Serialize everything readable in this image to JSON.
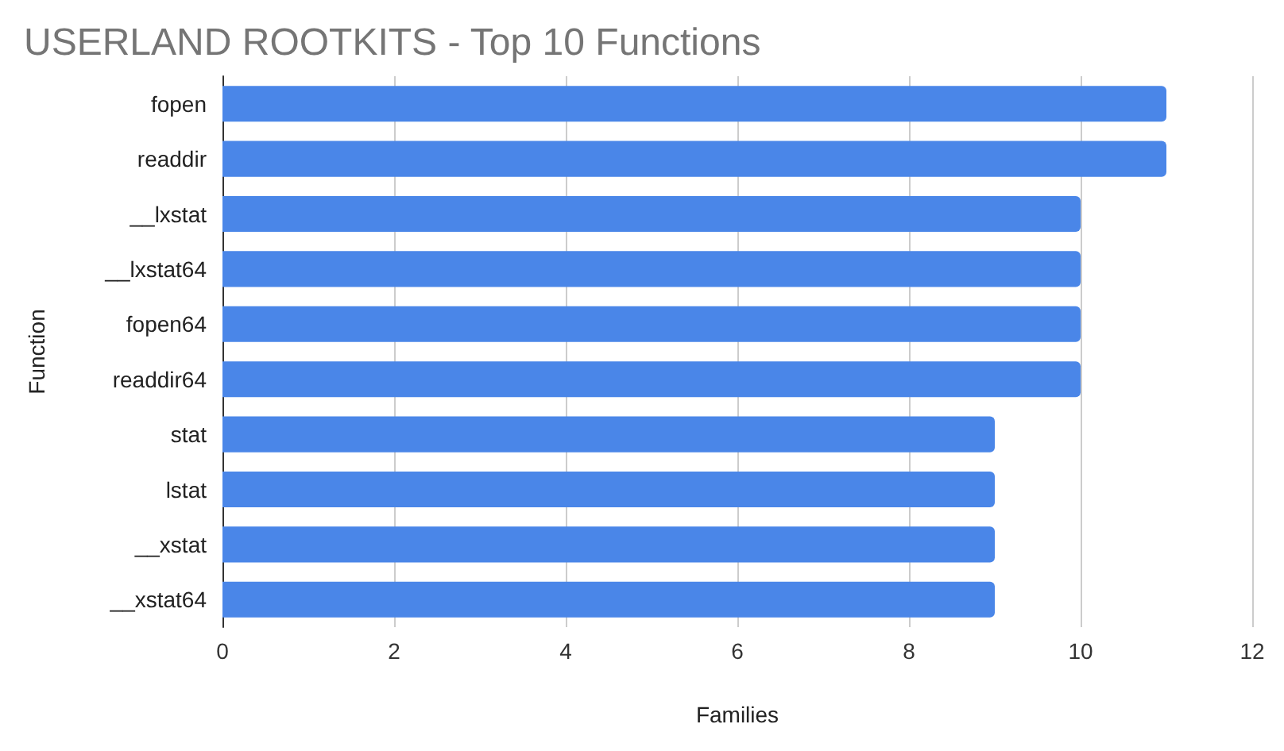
{
  "chart_data": {
    "type": "bar",
    "orientation": "horizontal",
    "title": "USERLAND ROOTKITS - Top 10 Functions",
    "xlabel": "Families",
    "ylabel": "Function",
    "categories": [
      "fopen",
      "readdir",
      "__lxstat",
      "__lxstat64",
      "fopen64",
      "readdir64",
      "stat",
      "lstat",
      "__xstat",
      "__xstat64"
    ],
    "values": [
      11,
      11,
      10,
      10,
      10,
      10,
      9,
      9,
      9,
      9
    ],
    "color": "#4a86e8",
    "xlim": [
      0,
      12
    ],
    "xticks": [
      0,
      2,
      4,
      6,
      8,
      10,
      12
    ],
    "grid": "x"
  }
}
